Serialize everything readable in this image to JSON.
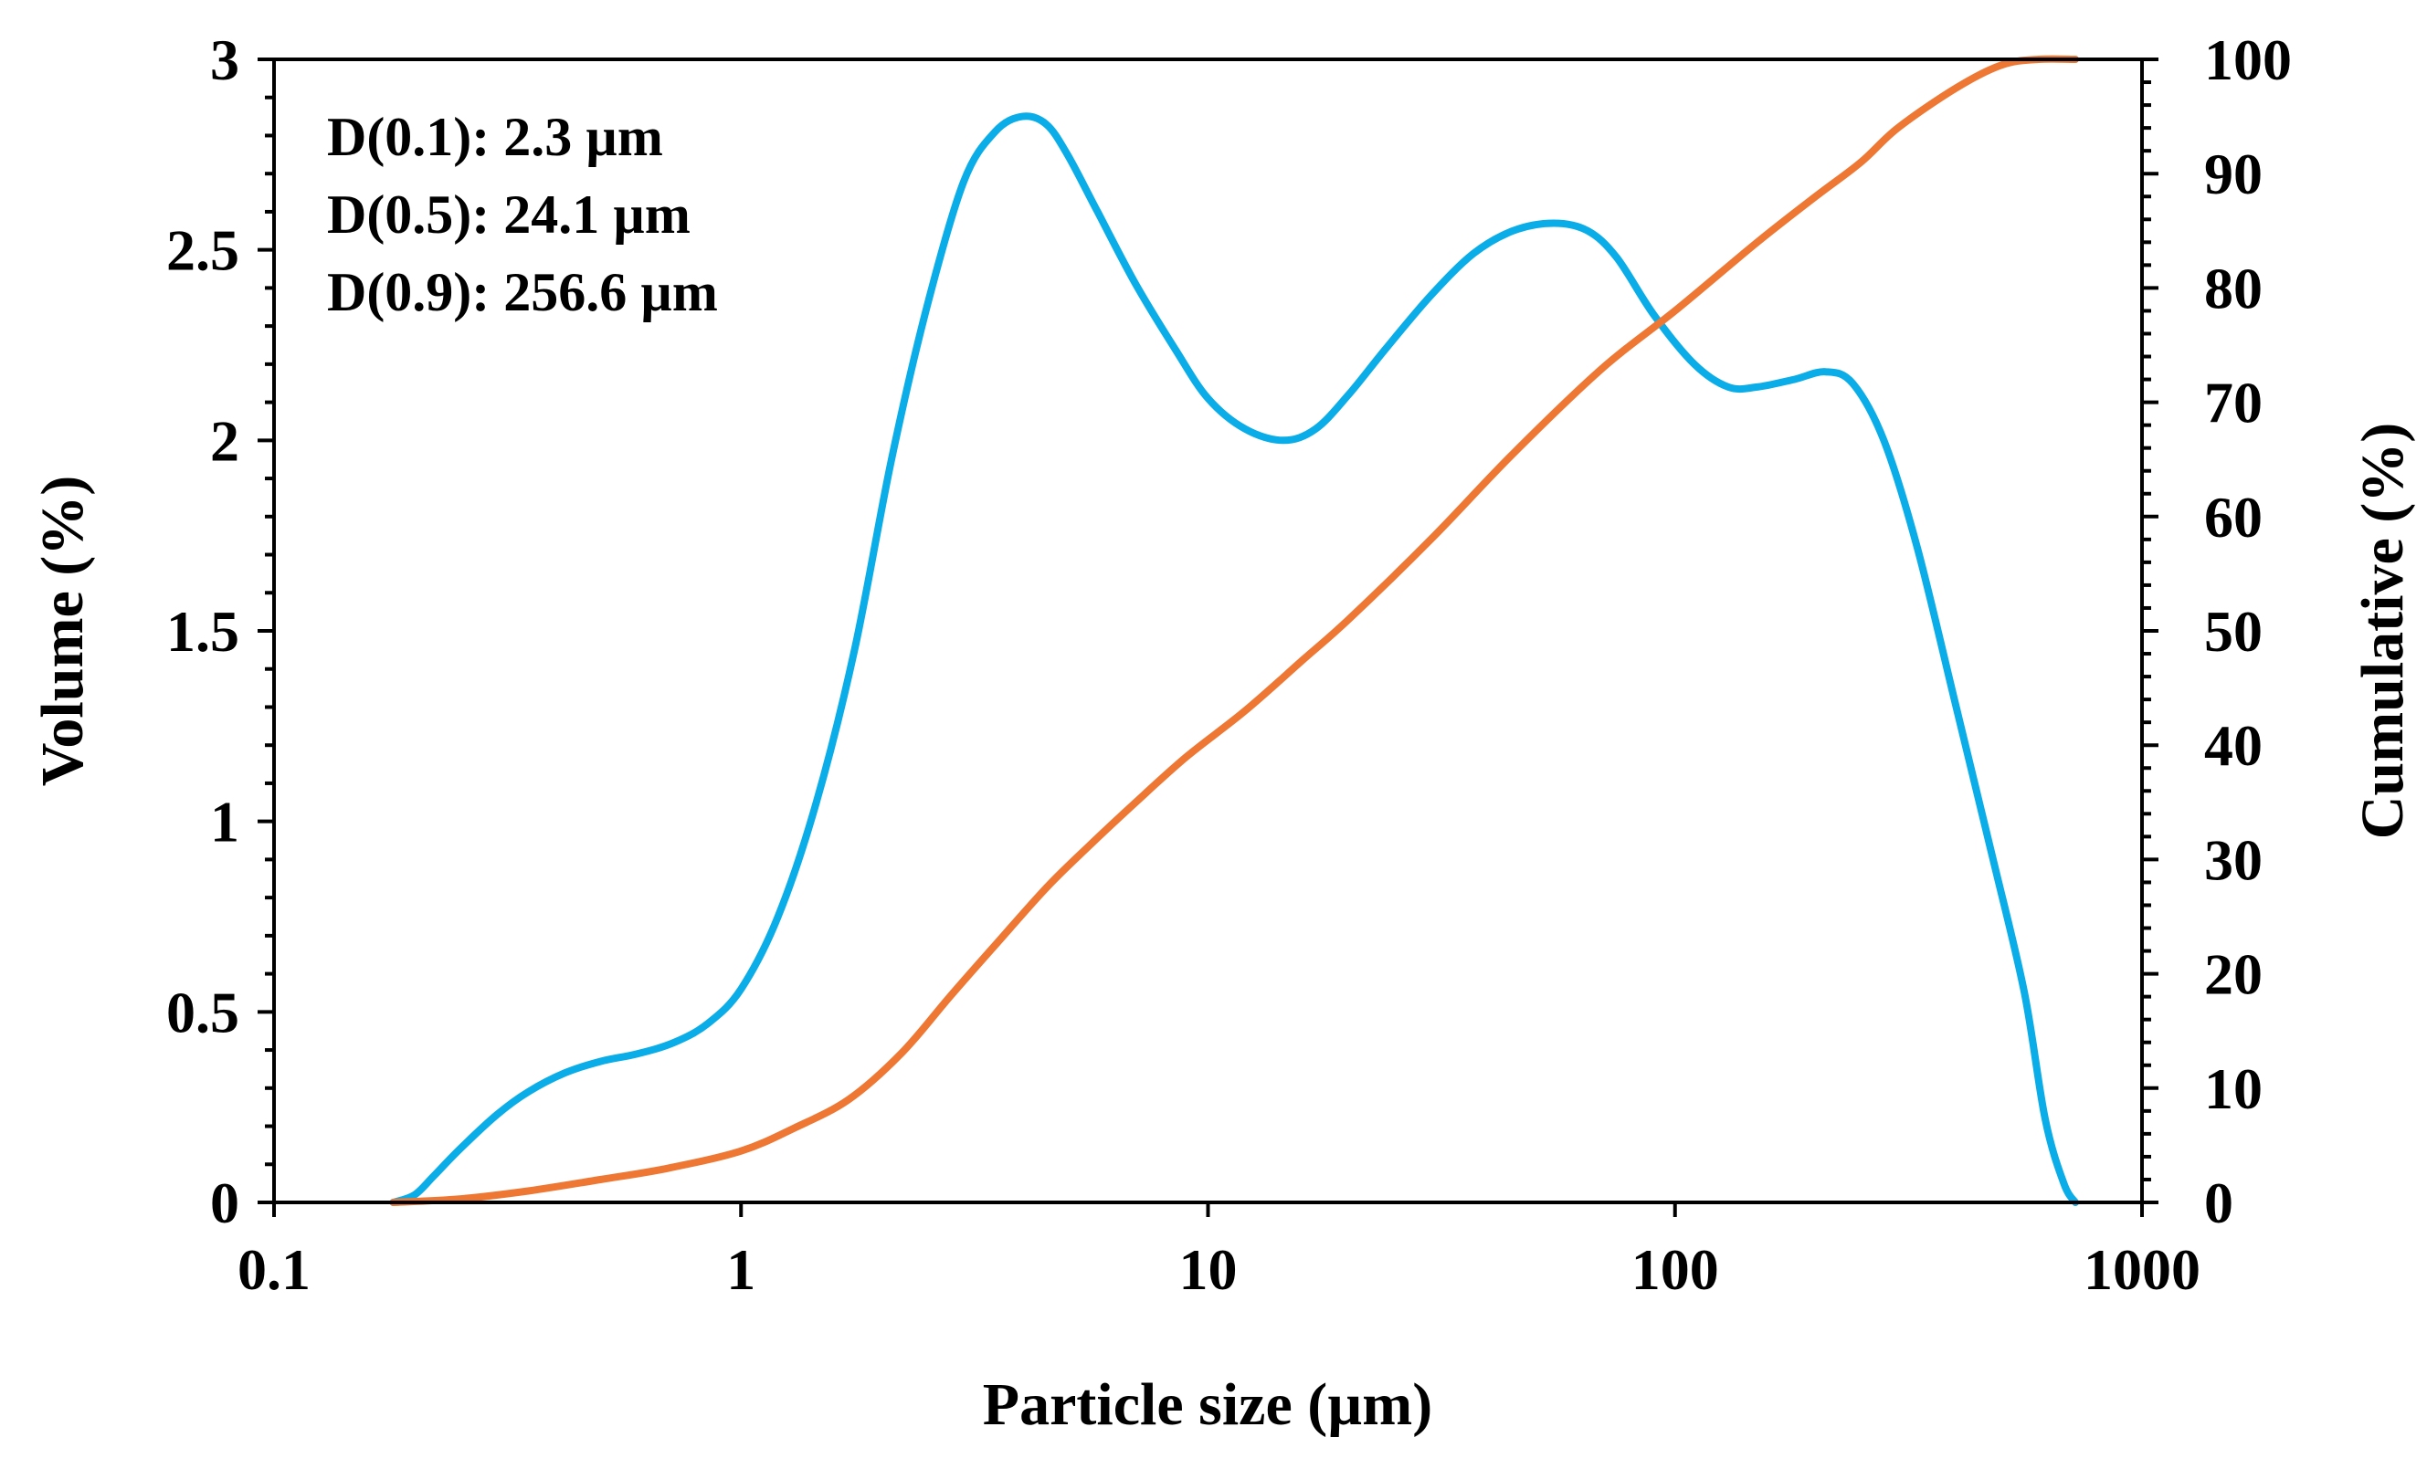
{
  "chart_data": {
    "type": "line",
    "title": "",
    "xlabel": "Particle size (µm)",
    "ylabel_left": "Volume (%)",
    "ylabel_right": "Cumulative (%)",
    "x_scale": "log",
    "xlim": [
      0.1,
      1000
    ],
    "ylim_left": [
      0,
      3
    ],
    "ylim_right": [
      0,
      100
    ],
    "x_ticks": [
      0.1,
      1,
      10,
      100,
      1000
    ],
    "x_tick_labels": [
      "0.1",
      "1",
      "10",
      "100",
      "1000"
    ],
    "y_left_ticks": [
      0,
      0.5,
      1,
      1.5,
      2,
      2.5,
      3
    ],
    "y_left_tick_labels": [
      "0",
      "0.5",
      "1",
      "1.5",
      "2",
      "2.5",
      "3"
    ],
    "y_right_ticks": [
      0,
      10,
      20,
      30,
      40,
      50,
      60,
      70,
      80,
      90,
      100
    ],
    "y_right_tick_labels": [
      "0",
      "10",
      "20",
      "30",
      "40",
      "50",
      "60",
      "70",
      "80",
      "90",
      "100"
    ],
    "grid": false,
    "annotations": [
      "D(0.1): 2.3 µm",
      "D(0.5): 24.1 µm",
      "D(0.9): 256.6 µm"
    ],
    "series": [
      {
        "name": "Volume",
        "axis": "left",
        "color": "#0AADE8",
        "x": [
          0.18,
          0.2,
          0.22,
          0.25,
          0.3,
          0.35,
          0.42,
          0.5,
          0.6,
          0.72,
          0.85,
          1.0,
          1.2,
          1.45,
          1.75,
          2.1,
          2.5,
          3.0,
          3.5,
          4.0,
          4.5,
          5.0,
          5.8,
          7.0,
          8.5,
          10.0,
          12.0,
          14.5,
          17.0,
          20.0,
          24.0,
          30.0,
          37.0,
          45.0,
          55.0,
          65.0,
          75.0,
          90.0,
          110.0,
          130.0,
          150.0,
          180.0,
          210.0,
          240.0,
          280.0,
          330.0,
          400.0,
          480.0,
          560.0,
          620.0,
          680.0,
          720.0
        ],
        "values": [
          0,
          0.02,
          0.07,
          0.14,
          0.23,
          0.29,
          0.34,
          0.37,
          0.39,
          0.42,
          0.47,
          0.56,
          0.75,
          1.05,
          1.45,
          1.95,
          2.35,
          2.68,
          2.81,
          2.85,
          2.83,
          2.75,
          2.6,
          2.41,
          2.24,
          2.11,
          2.03,
          2.0,
          2.03,
          2.12,
          2.24,
          2.38,
          2.49,
          2.55,
          2.57,
          2.55,
          2.48,
          2.33,
          2.2,
          2.14,
          2.14,
          2.16,
          2.18,
          2.15,
          2.0,
          1.72,
          1.3,
          0.9,
          0.55,
          0.22,
          0.05,
          0
        ]
      },
      {
        "name": "Cumulative",
        "axis": "right",
        "color": "#EE7733",
        "x": [
          0.18,
          0.25,
          0.35,
          0.5,
          0.7,
          1.0,
          1.3,
          1.7,
          2.2,
          2.8,
          3.5,
          4.5,
          5.5,
          7.0,
          9.0,
          12.0,
          16.0,
          20.0,
          30.0,
          45.0,
          70.0,
          100.0,
          150.0,
          200.0,
          250.0,
          300.0,
          400.0,
          500.0,
          600.0,
          720.0
        ],
        "values": [
          0,
          0.3,
          1,
          2,
          3,
          4.5,
          6.5,
          9,
          13,
          18,
          22.5,
          27.5,
          31,
          35,
          39,
          43,
          47.5,
          51,
          58,
          65.5,
          73,
          78,
          84,
          88,
          91,
          94,
          97.5,
          99.5,
          100,
          100
        ]
      }
    ]
  }
}
